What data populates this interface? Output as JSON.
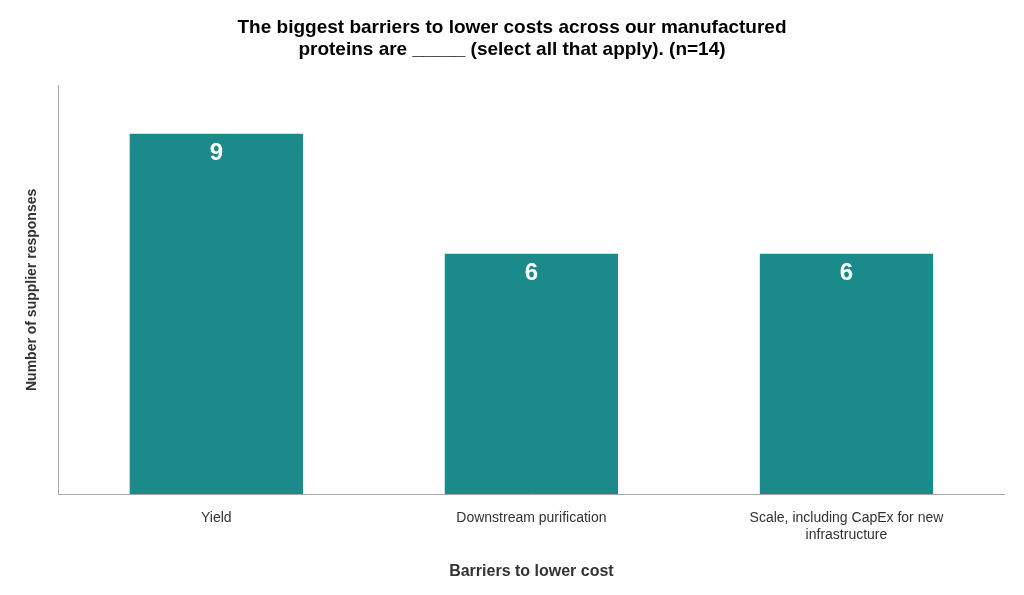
{
  "chart_data": {
    "type": "bar",
    "title": "The biggest barriers to lower costs across our manufactured\nproteins are _____ (select all that apply). (n=14)",
    "x_label": "Barriers to lower cost",
    "y_label": "Number of supplier responses",
    "categories": [
      "Yield",
      "Downstream purification",
      "Scale, including CapEx for new\ninfrastructure"
    ],
    "values": [
      9,
      6,
      6
    ],
    "color": "#1a8a8a",
    "ylim": [
      0,
      10.2
    ],
    "grid": false,
    "data_labels": true,
    "tick_labels": "x"
  }
}
